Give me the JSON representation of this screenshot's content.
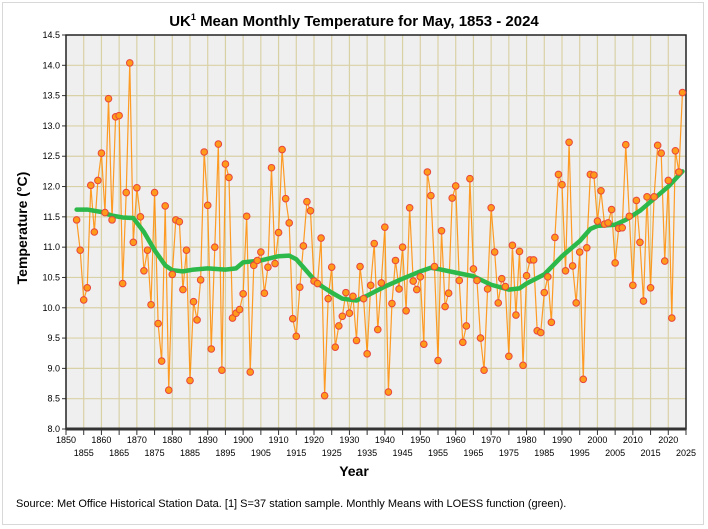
{
  "chart_data": {
    "type": "line",
    "title": "Mean Monthly Temperature for May, 1853 - 2024",
    "title_prefix": "UK",
    "title_superscript": "1",
    "xlabel": "Year",
    "ylabel": "Temperature (°C)",
    "xlim": [
      1850,
      2025
    ],
    "ylim": [
      8.0,
      14.5
    ],
    "grid": true,
    "x_ticks_upper": [
      "1850",
      "1860",
      "1870",
      "1880",
      "1890",
      "1900",
      "1910",
      "1920",
      "1930",
      "1940",
      "1950",
      "1960",
      "1970",
      "1980",
      "1990",
      "2000",
      "2010",
      "2020"
    ],
    "x_ticks_lower": [
      "1855",
      "1865",
      "1875",
      "1885",
      "1895",
      "1905",
      "1915",
      "1925",
      "1935",
      "1945",
      "1955",
      "1965",
      "1975",
      "1985",
      "1995",
      "2005",
      "2015",
      "2025"
    ],
    "y_ticks": [
      "8.0",
      "8.5",
      "9.0",
      "9.5",
      "10.0",
      "10.5",
      "11.0",
      "11.5",
      "12.0",
      "12.5",
      "13.0",
      "13.5",
      "14.0",
      "14.5"
    ],
    "start_year": 1853,
    "series": [
      {
        "name": "Monthly Mean",
        "color": "#ff8c00",
        "marker_fill": "#ff9a1a",
        "marker_edge": "#e8453c",
        "values": [
          11.45,
          10.95,
          10.13,
          10.33,
          12.02,
          11.25,
          12.1,
          12.55,
          11.57,
          13.45,
          11.45,
          13.15,
          13.17,
          10.4,
          11.9,
          14.04,
          11.08,
          11.98,
          11.5,
          10.61,
          10.95,
          10.05,
          11.9,
          9.74,
          9.12,
          11.68,
          8.64,
          10.55,
          11.45,
          11.42,
          10.3,
          10.95,
          8.8,
          10.1,
          9.8,
          10.46,
          12.57,
          11.69,
          9.32,
          11.0,
          12.7,
          8.97,
          12.37,
          12.15,
          9.83,
          9.91,
          9.97,
          10.23,
          11.51,
          8.94,
          10.7,
          10.78,
          10.92,
          10.24,
          10.67,
          12.31,
          10.73,
          11.24,
          12.61,
          11.8,
          11.4,
          9.82,
          9.53,
          10.34,
          11.02,
          11.75,
          11.6,
          10.44,
          10.4,
          11.15,
          8.55,
          10.15,
          10.67,
          9.35,
          9.7,
          9.86,
          10.25,
          9.91,
          10.19,
          9.46,
          10.68,
          10.15,
          9.24,
          10.37,
          11.06,
          9.64,
          10.41,
          11.33,
          8.61,
          10.07,
          10.78,
          10.31,
          11.0,
          9.95,
          11.65,
          10.44,
          10.3,
          10.51,
          9.4,
          12.24,
          11.85,
          10.68,
          9.13,
          11.27,
          10.02,
          10.24,
          11.81,
          12.01,
          10.45,
          9.43,
          9.7,
          12.13,
          10.64,
          10.45,
          9.5,
          8.97,
          10.31,
          11.65,
          10.92,
          10.08,
          10.48,
          10.35,
          9.2,
          11.03,
          9.88,
          10.93,
          9.05,
          10.53,
          10.79,
          10.79,
          9.62,
          9.59,
          10.25,
          10.51,
          9.76,
          11.16,
          12.2,
          12.03,
          10.61,
          12.73,
          10.69,
          10.08,
          10.92,
          8.82,
          10.99,
          12.2,
          12.19,
          11.43,
          11.93,
          11.38,
          11.4,
          11.62,
          10.74,
          11.31,
          11.32,
          12.69,
          11.51,
          10.37,
          11.77,
          11.08,
          10.11,
          11.83,
          10.33,
          11.83,
          12.68,
          12.55,
          10.77,
          12.1,
          9.83,
          12.59,
          12.24,
          13.55
        ]
      },
      {
        "name": "LOESS",
        "color": "#2db84a",
        "x": [
          1853,
          1856,
          1860,
          1863,
          1866,
          1869,
          1872,
          1875,
          1878,
          1880,
          1883,
          1886,
          1890,
          1895,
          1898,
          1900,
          1905,
          1910,
          1913,
          1915,
          1918,
          1921,
          1925,
          1928,
          1932,
          1935,
          1940,
          1945,
          1950,
          1953,
          1955,
          1960,
          1965,
          1970,
          1975,
          1978,
          1980,
          1985,
          1990,
          1995,
          1998,
          2000,
          2005,
          2008,
          2012,
          2016,
          2020,
          2024
        ],
        "values": [
          11.62,
          11.62,
          11.58,
          11.52,
          11.49,
          11.48,
          11.25,
          10.95,
          10.7,
          10.62,
          10.6,
          10.63,
          10.65,
          10.63,
          10.65,
          10.75,
          10.78,
          10.85,
          10.86,
          10.8,
          10.6,
          10.4,
          10.25,
          10.15,
          10.12,
          10.2,
          10.35,
          10.48,
          10.6,
          10.66,
          10.64,
          10.58,
          10.52,
          10.38,
          10.3,
          10.32,
          10.4,
          10.55,
          10.85,
          11.1,
          11.3,
          11.35,
          11.37,
          11.45,
          11.6,
          11.8,
          12.0,
          12.25
        ]
      }
    ],
    "footnote": "Source: Met Office Historical Station Data. [1] S=37 station sample. Monthly Means with LOESS function (green)."
  },
  "colors": {
    "plot_bg": "#efefef",
    "grid": "#d9d1a6"
  }
}
